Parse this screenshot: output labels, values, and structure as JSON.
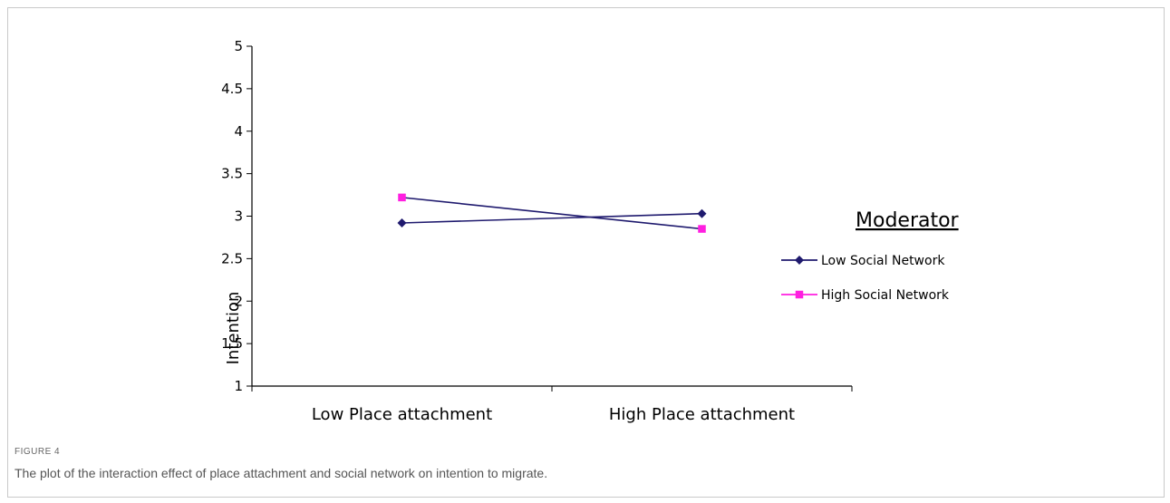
{
  "figure": {
    "label": "FIGURE 4",
    "caption": "The plot of the interaction effect of place attachment and social network on intention to migrate."
  },
  "chart_data": {
    "type": "line",
    "title": "",
    "xlabel": "",
    "ylabel": "Intention",
    "ylim": [
      1,
      5
    ],
    "yticks": [
      "1",
      "1.5",
      "2",
      "2.5",
      "3",
      "3.5",
      "4",
      "4.5",
      "5"
    ],
    "categories": [
      "Low Place attachment",
      "High Place attachment"
    ],
    "legend_title": "Moderator",
    "legend_position": "right",
    "grid": false,
    "series": [
      {
        "name": "Low Social Network",
        "values": [
          2.92,
          3.03
        ],
        "color": "#1f1a6e",
        "marker": "diamond"
      },
      {
        "name": "High Social Network",
        "values": [
          3.22,
          2.85
        ],
        "color": "#ff1fe0",
        "marker": "square"
      }
    ]
  }
}
